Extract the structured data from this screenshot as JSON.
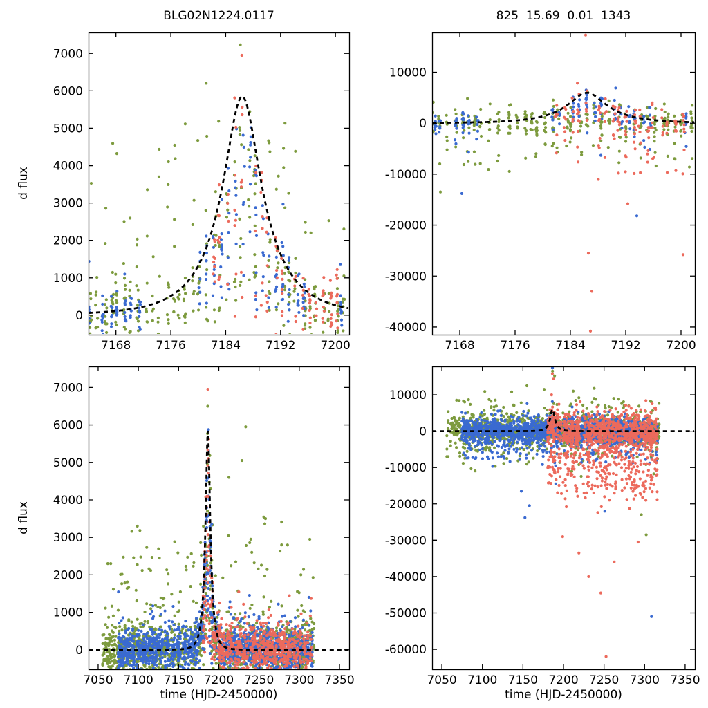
{
  "figure": {
    "background": "#ffffff",
    "titles": {
      "left": "BLG02N1224.0117",
      "right": "825  15.69  0.01  1343"
    },
    "ylabel": "d flux",
    "xlabel": "time (HJD-2450000)",
    "colors": {
      "green": "#7d9b3e",
      "blue": "#3a6ad1",
      "red": "#ec6a5c",
      "model": "#000000",
      "axis": "#000000"
    }
  },
  "chart_data": [
    {
      "id": "top_left",
      "type": "scatter",
      "title": "BLG02N1224.0117",
      "ylabel": "d flux",
      "xlabel": "",
      "xlim": [
        7164,
        7202
      ],
      "ylim": [
        -520,
        7560
      ],
      "xticks": [
        7168,
        7176,
        7184,
        7192,
        7200
      ],
      "yticks": [
        0,
        1000,
        2000,
        3000,
        4000,
        5000,
        6000,
        7000
      ],
      "model_curve": {
        "type": "paczynski",
        "t0": 7186.4,
        "tE": 8.0,
        "u0": 0.35,
        "fs": 2944,
        "peak_flux": 5850,
        "style": "dashed-black"
      },
      "series": [
        {
          "color": "green",
          "seed": 11,
          "ranges": [
            [
              7164.3,
              7201.7
            ]
          ],
          "step": 1,
          "jitter": 0.6,
          "skip": 0.04,
          "ppn": [
            6,
            13
          ],
          "xspread": 0.3,
          "sigma": 400,
          "mf": [
            0.05,
            0.9
          ],
          "pos": [
            0.2,
            400,
            4600
          ],
          "neg": [
            0.03,
            200,
            600
          ],
          "extras": []
        },
        {
          "color": "blue",
          "seed": 22,
          "ranges": [
            [
              7164.3,
              7171.6
            ],
            [
              7180.4,
              7196.6
            ],
            [
              7199.8,
              7201.7
            ]
          ],
          "step": 1,
          "jitter": 0.5,
          "skip": 0.08,
          "ppn": [
            5,
            11
          ],
          "xspread": 0.25,
          "sigma": 260,
          "mf": [
            0.1,
            1.0
          ],
          "pos": [
            0.05,
            300,
            1500
          ],
          "neg": [
            0.04,
            200,
            500
          ],
          "extras": []
        },
        {
          "color": "red",
          "seed": 33,
          "ranges": [
            [
              7182.2,
              7200.6
            ]
          ],
          "step": 1,
          "jitter": 0.5,
          "skip": 0.12,
          "ppn": [
            4,
            10
          ],
          "xspread": 0.25,
          "sigma": 300,
          "mf": [
            0.0,
            1.05
          ],
          "pos": [
            0.05,
            200,
            900
          ],
          "neg": [
            0.05,
            200,
            500
          ],
          "extras": [
            [
              7186.35,
              6950
            ]
          ]
        }
      ]
    },
    {
      "id": "top_right",
      "type": "scatter",
      "title": "825  15.69  0.01  1343",
      "ylabel": "",
      "xlabel": "",
      "xlim": [
        7164,
        7202
      ],
      "ylim": [
        -41500,
        17800
      ],
      "xticks": [
        7168,
        7176,
        7184,
        7192,
        7200
      ],
      "yticks": [
        -40000,
        -30000,
        -20000,
        -10000,
        0,
        10000
      ],
      "model_curve": {
        "type": "paczynski",
        "t0": 7186.4,
        "tE": 8.0,
        "u0": 0.35,
        "fs": 3000,
        "peak_flux": 5960,
        "style": "dashed-black"
      },
      "series": [
        {
          "color": "green",
          "seed": 44,
          "ranges": [
            [
              7164.3,
              7201.7
            ]
          ],
          "step": 1,
          "jitter": 0.6,
          "skip": 0.04,
          "ppn": [
            6,
            13
          ],
          "xspread": 0.3,
          "sigma": 1400,
          "mf": [
            0.0,
            0.35
          ],
          "pos": [
            0.06,
            1000,
            4500
          ],
          "neg": [
            0.14,
            800,
            9000
          ],
          "extras": [
            [
              7165.2,
              -13500
            ],
            [
              7201.2,
              -8600
            ]
          ]
        },
        {
          "color": "blue",
          "seed": 55,
          "ranges": [
            [
              7164.3,
              7171.6
            ],
            [
              7180.4,
              7196.6
            ],
            [
              7199.8,
              7201.7
            ]
          ],
          "step": 1,
          "jitter": 0.5,
          "skip": 0.08,
          "ppn": [
            5,
            11
          ],
          "xspread": 0.25,
          "sigma": 1200,
          "mf": [
            0.2,
            1.05
          ],
          "pos": [
            0.04,
            800,
            3000
          ],
          "neg": [
            0.12,
            800,
            5500
          ],
          "extras": [
            [
              7168.3,
              -13800
            ],
            [
              7193.6,
              -18200
            ]
          ]
        },
        {
          "color": "red",
          "seed": 66,
          "ranges": [
            [
              7182.2,
              7200.6
            ]
          ],
          "step": 1,
          "jitter": 0.5,
          "skip": 0.1,
          "ppn": [
            5,
            11
          ],
          "xspread": 0.3,
          "sigma": 1500,
          "mf": [
            0.0,
            1.05
          ],
          "pos": [
            0.05,
            800,
            3500
          ],
          "neg": [
            0.3,
            1000,
            11000
          ],
          "extras": [
            [
              7186.2,
              17300
            ],
            [
              7186.6,
              -25500
            ],
            [
              7187.1,
              -33000
            ],
            [
              7200.3,
              -25800
            ],
            [
              7186.9,
              -40800
            ],
            [
              7192.3,
              -15800
            ]
          ]
        }
      ]
    },
    {
      "id": "bottom_left",
      "type": "scatter",
      "title": "",
      "ylabel": "d flux",
      "xlabel": "time (HJD-2450000)",
      "xlim": [
        7038,
        7362
      ],
      "ylim": [
        -520,
        7560
      ],
      "xticks": [
        7050,
        7100,
        7150,
        7200,
        7250,
        7300,
        7350
      ],
      "yticks": [
        0,
        1000,
        2000,
        3000,
        4000,
        5000,
        6000,
        7000
      ],
      "model_curve": {
        "type": "paczynski",
        "t0": 7186.4,
        "tE": 8.0,
        "u0": 0.35,
        "fs": 2944,
        "peak_flux": 5850,
        "style": "dashed-black"
      },
      "series": [
        {
          "color": "green",
          "seed": 77,
          "ranges": [
            [
              7056,
              7318
            ]
          ],
          "step": 1,
          "jitter": 0.6,
          "skip": 0.07,
          "ppn": [
            3,
            9
          ],
          "xspread": 0.3,
          "sigma": 360,
          "mf": [
            0.05,
            0.9
          ],
          "pos": [
            0.1,
            300,
            3000
          ],
          "neg": [
            0.03,
            150,
            500
          ],
          "extras": [
            [
              7186.2,
              6500
            ],
            [
              7233.4,
              5950
            ],
            [
              7228.8,
              5050
            ],
            [
              7212.5,
              4600
            ],
            [
              7258.0,
              3500
            ],
            [
              7302.0,
              2000
            ]
          ]
        },
        {
          "color": "blue",
          "seed": 88,
          "ranges": [
            [
              7075,
              7316
            ]
          ],
          "step": 1,
          "jitter": 0.5,
          "skip": 0.12,
          "ppn": [
            4,
            11
          ],
          "xspread": 0.3,
          "sigma": 270,
          "mf": [
            0.05,
            1.0
          ],
          "pos": [
            0.05,
            200,
            1300
          ],
          "neg": [
            0.04,
            150,
            450
          ],
          "extras": []
        },
        {
          "color": "red",
          "seed": 99,
          "ranges": [
            [
              7180.5,
              7316
            ]
          ],
          "step": 1,
          "jitter": 0.5,
          "skip": 0.15,
          "ppn": [
            3,
            9
          ],
          "xspread": 0.3,
          "sigma": 290,
          "mf": [
            0.0,
            1.05
          ],
          "pos": [
            0.05,
            200,
            1100
          ],
          "neg": [
            0.04,
            150,
            450
          ],
          "extras": [
            [
              7186.35,
              6950
            ]
          ]
        }
      ]
    },
    {
      "id": "bottom_right",
      "type": "scatter",
      "title": "",
      "ylabel": "",
      "xlabel": "time (HJD-2450000)",
      "xlim": [
        7038,
        7362
      ],
      "ylim": [
        -65500,
        17800
      ],
      "xticks": [
        7050,
        7100,
        7150,
        7200,
        7250,
        7300,
        7350
      ],
      "yticks": [
        -60000,
        -50000,
        -40000,
        -30000,
        -20000,
        -10000,
        0,
        10000
      ],
      "model_curve": {
        "type": "paczynski",
        "t0": 7186.4,
        "tE": 8.0,
        "u0": 0.35,
        "fs": 3000,
        "peak_flux": 5960,
        "style": "dashed-black"
      },
      "series": [
        {
          "color": "green",
          "seed": 111,
          "ranges": [
            [
              7056,
              7318
            ]
          ],
          "step": 1,
          "jitter": 0.6,
          "skip": 0.07,
          "ppn": [
            3,
            8
          ],
          "xspread": 0.3,
          "sigma": 2000,
          "mf": [
            0.0,
            0.35
          ],
          "pos": [
            0.12,
            1500,
            9500
          ],
          "neg": [
            0.1,
            1500,
            8000
          ],
          "extras": [
            [
              7186.5,
              16500
            ],
            [
              7189.0,
              15200
            ],
            [
              7212.0,
              11000
            ],
            [
              7240.0,
              8800
            ],
            [
              7302.0,
              -28500
            ],
            [
              7296.0,
              -23000
            ]
          ]
        },
        {
          "color": "blue",
          "seed": 122,
          "ranges": [
            [
              7075,
              7316
            ]
          ],
          "step": 1,
          "jitter": 0.5,
          "skip": 0.1,
          "ppn": [
            4,
            11
          ],
          "xspread": 0.3,
          "sigma": 1700,
          "mf": [
            0.0,
            0.4
          ],
          "pos": [
            0.04,
            1000,
            4000
          ],
          "neg": [
            0.12,
            1200,
            7500
          ],
          "extras": [
            [
              7308.5,
              -51000
            ],
            [
              7152.5,
              -23800
            ],
            [
              7158.0,
              -20500
            ],
            [
              7148.0,
              -16500
            ],
            [
              7190.5,
              -14500
            ],
            [
              7251.0,
              -22000
            ],
            [
              7186.4,
              17400
            ]
          ]
        },
        {
          "color": "red",
          "seed": 133,
          "ranges": [
            [
              7180.5,
              7316
            ]
          ],
          "step": 1,
          "jitter": 0.5,
          "skip": 0.08,
          "ppn": [
            5,
            13
          ],
          "xspread": 0.35,
          "sigma": 2300,
          "mf": [
            0.0,
            0.5
          ],
          "pos": [
            0.05,
            1000,
            5000
          ],
          "neg": [
            0.32,
            2000,
            17000
          ],
          "extras": [
            [
              7252.5,
              -62000
            ],
            [
              7246.0,
              -44500
            ],
            [
              7231.0,
              -40000
            ],
            [
              7262.5,
              -36000
            ],
            [
              7292.0,
              -30500
            ],
            [
              7186.3,
              15800
            ],
            [
              7187.6,
              14500
            ],
            [
              7199.0,
              -29000
            ],
            [
              7219.0,
              -33500
            ]
          ]
        }
      ]
    }
  ]
}
